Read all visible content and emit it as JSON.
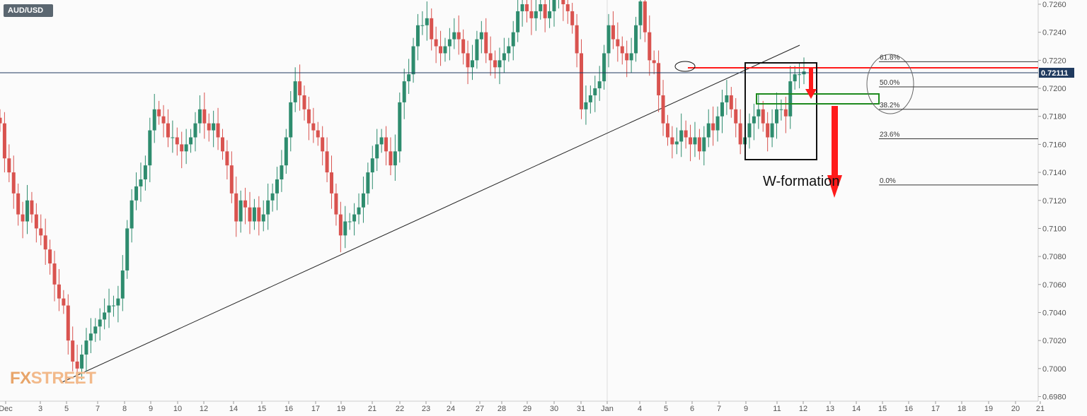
{
  "ticker": "AUD/USD",
  "watermark": {
    "part1": "FX",
    "part2": "STREET"
  },
  "current_price": "0.72111",
  "annotation": "W-formation",
  "colors": {
    "up": "#2e8c6e",
    "down": "#d9534f",
    "axis_text": "#555555",
    "grid": "#eeeeee",
    "price_tag": "#1f3a5f",
    "marker_red": "#ff1a1a",
    "marker_green": "#1e8a1e",
    "fib": "#333333"
  },
  "chart_data": {
    "type": "candlestick",
    "timeframe": "4H",
    "symbol": "AUD/USD",
    "ylim": [
      0.698,
      0.7265
    ],
    "y_ticks": [
      "0.7260",
      "0.7240",
      "0.7220",
      "0.7200",
      "0.7180",
      "0.7160",
      "0.7140",
      "0.7120",
      "0.7100",
      "0.7080",
      "0.7060",
      "0.7040",
      "0.7020",
      "0.7000",
      "0.6980"
    ],
    "x_labels": [
      "Dec",
      "3",
      "5",
      "7",
      "8",
      "9",
      "10",
      "12",
      "14",
      "15",
      "16",
      "17",
      "19",
      "21",
      "22",
      "23",
      "24",
      "27",
      "28",
      "29",
      "30",
      "31",
      "Jan",
      "4",
      "5",
      "6",
      "7",
      "9",
      "11",
      "12",
      "13",
      "14",
      "15",
      "16",
      "17",
      "18",
      "19",
      "20",
      "21"
    ],
    "current_price": 0.72111,
    "closes": [
      0.7175,
      0.715,
      0.714,
      0.7125,
      0.711,
      0.7105,
      0.712,
      0.711,
      0.71,
      0.7095,
      0.7085,
      0.7075,
      0.706,
      0.705,
      0.7045,
      0.702,
      0.7005,
      0.7,
      0.701,
      0.702,
      0.7025,
      0.703,
      0.7035,
      0.704,
      0.7045,
      0.7045,
      0.705,
      0.707,
      0.71,
      0.712,
      0.713,
      0.7135,
      0.7145,
      0.717,
      0.7185,
      0.718,
      0.7175,
      0.7165,
      0.7165,
      0.716,
      0.7155,
      0.716,
      0.7165,
      0.7175,
      0.7185,
      0.7175,
      0.717,
      0.7175,
      0.7165,
      0.7155,
      0.7145,
      0.7125,
      0.7105,
      0.712,
      0.7115,
      0.7105,
      0.7115,
      0.7105,
      0.711,
      0.712,
      0.7125,
      0.7135,
      0.7145,
      0.7165,
      0.719,
      0.7205,
      0.7195,
      0.7185,
      0.7175,
      0.717,
      0.7165,
      0.7155,
      0.714,
      0.7125,
      0.711,
      0.7095,
      0.7105,
      0.7105,
      0.711,
      0.7115,
      0.7125,
      0.714,
      0.715,
      0.716,
      0.7165,
      0.7155,
      0.7145,
      0.7155,
      0.719,
      0.7205,
      0.721,
      0.723,
      0.7245,
      0.7245,
      0.725,
      0.7235,
      0.723,
      0.7225,
      0.723,
      0.7235,
      0.724,
      0.7235,
      0.7225,
      0.7215,
      0.722,
      0.7235,
      0.724,
      0.7225,
      0.722,
      0.7215,
      0.722,
      0.7225,
      0.723,
      0.724,
      0.7255,
      0.726,
      0.7255,
      0.725,
      0.7255,
      0.726,
      0.725,
      0.7255,
      0.7265,
      0.7265,
      0.726,
      0.7255,
      0.7245,
      0.7225,
      0.7185,
      0.719,
      0.7195,
      0.72,
      0.7205,
      0.7225,
      0.7245,
      0.7235,
      0.723,
      0.7225,
      0.722,
      0.7225,
      0.7245,
      0.7262,
      0.724,
      0.722,
      0.7218,
      0.7195,
      0.7175,
      0.7165,
      0.716,
      0.7162,
      0.717,
      0.7165,
      0.716,
      0.7165,
      0.7155,
      0.7165,
      0.7175,
      0.717,
      0.718,
      0.719,
      0.7195,
      0.7185,
      0.7175,
      0.716,
      0.7165,
      0.7175,
      0.718,
      0.7185,
      0.7175,
      0.7165,
      0.7175,
      0.7185,
      0.7185,
      0.718,
      0.7205,
      0.721,
      0.721,
      0.7212
    ]
  },
  "fib_levels": [
    {
      "label": "61.8%",
      "price": 0.7219
    },
    {
      "label": "50.0%",
      "price": 0.7201
    },
    {
      "label": "38.2%",
      "price": 0.7185
    },
    {
      "label": "23.6%",
      "price": 0.7164
    },
    {
      "label": "0.0%",
      "price": 0.7131
    }
  ]
}
